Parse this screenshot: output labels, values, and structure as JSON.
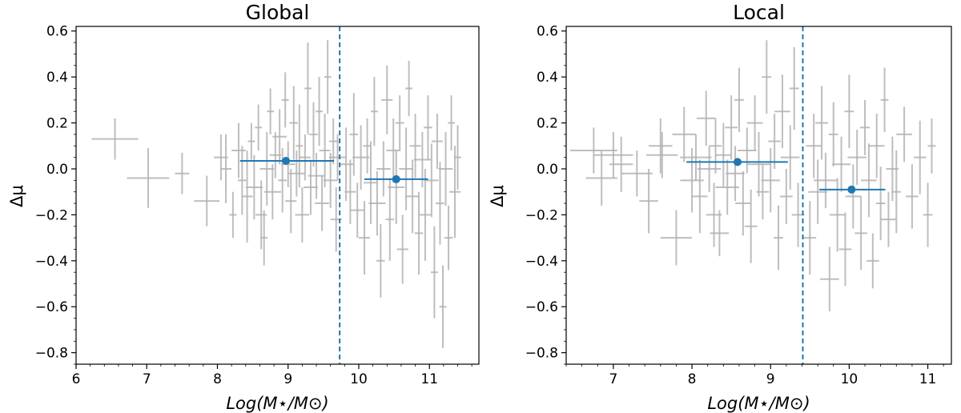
{
  "chart_data": [
    {
      "type": "scatter",
      "title": "Global",
      "xlabel": "Log(M⋆/M⊙)",
      "ylabel": "Δμ",
      "xlim": [
        6.0,
        11.7
      ],
      "ylim": [
        -0.85,
        0.62
      ],
      "xticks": [
        "6",
        "7",
        "8",
        "9",
        "10",
        "11"
      ],
      "yticks": [
        "−0.8",
        "−0.6",
        "−0.4",
        "−0.2",
        "0.0",
        "0.2",
        "0.4",
        "0.6"
      ],
      "grid": false,
      "legend": "none",
      "colors": {
        "data": "#b3b3b3",
        "summary": "#1f77b4",
        "divider": "#1f77b4"
      },
      "divider_x": 9.73,
      "summary_points": [
        {
          "x": 8.97,
          "y": 0.035,
          "xerr_low": 0.65,
          "xerr_high": 0.68
        },
        {
          "x": 10.53,
          "y": -0.045,
          "xerr_low": 0.45,
          "xerr_high": 0.45
        }
      ],
      "points": [
        {
          "x": 6.55,
          "y": 0.13,
          "xe": 0.33,
          "ye": 0.09
        },
        {
          "x": 7.02,
          "y": -0.04,
          "xe": 0.3,
          "ye": 0.13
        },
        {
          "x": 7.5,
          "y": -0.02,
          "xe": 0.1,
          "ye": 0.09
        },
        {
          "x": 7.85,
          "y": -0.14,
          "xe": 0.18,
          "ye": 0.11
        },
        {
          "x": 8.05,
          "y": 0.05,
          "xe": 0.1,
          "ye": 0.1
        },
        {
          "x": 8.12,
          "y": 0.0,
          "xe": 0.08,
          "ye": 0.15
        },
        {
          "x": 8.22,
          "y": -0.2,
          "xe": 0.05,
          "ye": 0.1
        },
        {
          "x": 8.3,
          "y": 0.08,
          "xe": 0.1,
          "ye": 0.12
        },
        {
          "x": 8.35,
          "y": -0.05,
          "xe": 0.06,
          "ye": 0.15
        },
        {
          "x": 8.42,
          "y": -0.12,
          "xe": 0.08,
          "ye": 0.2
        },
        {
          "x": 8.48,
          "y": 0.12,
          "xe": 0.05,
          "ye": 0.08
        },
        {
          "x": 8.52,
          "y": -0.08,
          "xe": 0.12,
          "ye": 0.14
        },
        {
          "x": 8.58,
          "y": 0.18,
          "xe": 0.05,
          "ye": 0.1
        },
        {
          "x": 8.62,
          "y": -0.2,
          "xe": 0.08,
          "ye": 0.15
        },
        {
          "x": 8.66,
          "y": -0.3,
          "xe": 0.05,
          "ye": 0.12
        },
        {
          "x": 8.7,
          "y": 0.0,
          "xe": 0.1,
          "ye": 0.16
        },
        {
          "x": 8.75,
          "y": 0.25,
          "xe": 0.05,
          "ye": 0.1
        },
        {
          "x": 8.78,
          "y": -0.1,
          "xe": 0.12,
          "ye": 0.12
        },
        {
          "x": 8.82,
          "y": 0.06,
          "xe": 0.08,
          "ye": 0.1
        },
        {
          "x": 8.88,
          "y": 0.14,
          "xe": 0.1,
          "ye": 0.12
        },
        {
          "x": 8.92,
          "y": -0.05,
          "xe": 0.06,
          "ye": 0.14
        },
        {
          "x": 8.96,
          "y": 0.3,
          "xe": 0.05,
          "ye": 0.12
        },
        {
          "x": 9.0,
          "y": 0.02,
          "xe": 0.1,
          "ye": 0.1
        },
        {
          "x": 9.04,
          "y": -0.14,
          "xe": 0.08,
          "ye": 0.14
        },
        {
          "x": 9.08,
          "y": 0.2,
          "xe": 0.06,
          "ye": 0.16
        },
        {
          "x": 9.12,
          "y": -0.02,
          "xe": 0.12,
          "ye": 0.1
        },
        {
          "x": 9.16,
          "y": 0.1,
          "xe": 0.05,
          "ye": 0.18
        },
        {
          "x": 9.2,
          "y": -0.2,
          "xe": 0.1,
          "ye": 0.12
        },
        {
          "x": 9.24,
          "y": 0.05,
          "xe": 0.08,
          "ye": 0.1
        },
        {
          "x": 9.28,
          "y": 0.35,
          "xe": 0.05,
          "ye": 0.2
        },
        {
          "x": 9.32,
          "y": -0.08,
          "xe": 0.1,
          "ye": 0.12
        },
        {
          "x": 9.36,
          "y": 0.15,
          "xe": 0.06,
          "ye": 0.14
        },
        {
          "x": 9.4,
          "y": -0.03,
          "xe": 0.12,
          "ye": 0.1
        },
        {
          "x": 9.44,
          "y": 0.25,
          "xe": 0.05,
          "ye": 0.15
        },
        {
          "x": 9.48,
          "y": -0.15,
          "xe": 0.1,
          "ye": 0.12
        },
        {
          "x": 9.52,
          "y": 0.08,
          "xe": 0.08,
          "ye": 0.16
        },
        {
          "x": 9.56,
          "y": 0.4,
          "xe": 0.05,
          "ye": 0.16
        },
        {
          "x": 9.6,
          "y": -0.05,
          "xe": 0.1,
          "ye": 0.12
        },
        {
          "x": 9.64,
          "y": 0.12,
          "xe": 0.06,
          "ye": 0.1
        },
        {
          "x": 9.68,
          "y": -0.22,
          "xe": 0.08,
          "ye": 0.14
        },
        {
          "x": 9.7,
          "y": 0.05,
          "xe": 0.12,
          "ye": 0.1
        },
        {
          "x": 9.82,
          "y": 0.02,
          "xe": 0.1,
          "ye": 0.16
        },
        {
          "x": 9.88,
          "y": -0.1,
          "xe": 0.08,
          "ye": 0.14
        },
        {
          "x": 9.93,
          "y": 0.15,
          "xe": 0.06,
          "ye": 0.18
        },
        {
          "x": 9.98,
          "y": -0.18,
          "xe": 0.1,
          "ye": 0.12
        },
        {
          "x": 10.03,
          "y": 0.05,
          "xe": 0.12,
          "ye": 0.14
        },
        {
          "x": 10.08,
          "y": -0.3,
          "xe": 0.08,
          "ye": 0.16
        },
        {
          "x": 10.12,
          "y": 0.1,
          "xe": 0.06,
          "ye": 0.12
        },
        {
          "x": 10.17,
          "y": -0.06,
          "xe": 0.1,
          "ye": 0.18
        },
        {
          "x": 10.22,
          "y": 0.25,
          "xe": 0.05,
          "ye": 0.15
        },
        {
          "x": 10.26,
          "y": -0.15,
          "xe": 0.12,
          "ye": 0.14
        },
        {
          "x": 10.31,
          "y": -0.4,
          "xe": 0.06,
          "ye": 0.16
        },
        {
          "x": 10.35,
          "y": 0.0,
          "xe": 0.1,
          "ye": 0.12
        },
        {
          "x": 10.4,
          "y": 0.3,
          "xe": 0.08,
          "ye": 0.15
        },
        {
          "x": 10.44,
          "y": -0.22,
          "xe": 0.06,
          "ye": 0.18
        },
        {
          "x": 10.49,
          "y": 0.08,
          "xe": 0.1,
          "ye": 0.14
        },
        {
          "x": 10.53,
          "y": -0.08,
          "xe": 0.12,
          "ye": 0.16
        },
        {
          "x": 10.58,
          "y": 0.2,
          "xe": 0.06,
          "ye": 0.12
        },
        {
          "x": 10.62,
          "y": -0.35,
          "xe": 0.08,
          "ye": 0.15
        },
        {
          "x": 10.67,
          "y": 0.0,
          "xe": 0.1,
          "ye": 0.18
        },
        {
          "x": 10.71,
          "y": 0.35,
          "xe": 0.05,
          "ye": 0.12
        },
        {
          "x": 10.76,
          "y": -0.12,
          "xe": 0.1,
          "ye": 0.16
        },
        {
          "x": 10.8,
          "y": 0.1,
          "xe": 0.08,
          "ye": 0.14
        },
        {
          "x": 10.85,
          "y": -0.28,
          "xe": 0.06,
          "ye": 0.18
        },
        {
          "x": 10.9,
          "y": 0.04,
          "xe": 0.12,
          "ye": 0.12
        },
        {
          "x": 10.94,
          "y": -0.2,
          "xe": 0.08,
          "ye": 0.2
        },
        {
          "x": 10.98,
          "y": 0.18,
          "xe": 0.06,
          "ye": 0.14
        },
        {
          "x": 11.03,
          "y": -0.05,
          "xe": 0.1,
          "ye": 0.16
        },
        {
          "x": 11.07,
          "y": -0.45,
          "xe": 0.05,
          "ye": 0.2
        },
        {
          "x": 11.11,
          "y": 0.12,
          "xe": 0.08,
          "ye": 0.12
        },
        {
          "x": 11.15,
          "y": -0.15,
          "xe": 0.06,
          "ye": 0.18
        },
        {
          "x": 11.19,
          "y": -0.6,
          "xe": 0.05,
          "ye": 0.18
        },
        {
          "x": 11.23,
          "y": 0.0,
          "xe": 0.1,
          "ye": 0.16
        },
        {
          "x": 11.27,
          "y": -0.3,
          "xe": 0.06,
          "ye": 0.14
        },
        {
          "x": 11.31,
          "y": 0.2,
          "xe": 0.05,
          "ye": 0.12
        },
        {
          "x": 11.36,
          "y": -0.1,
          "xe": 0.08,
          "ye": 0.2
        },
        {
          "x": 11.4,
          "y": 0.05,
          "xe": 0.05,
          "ye": 0.14
        }
      ]
    },
    {
      "type": "scatter",
      "title": "Local",
      "xlabel": "Log(M⋆/M⊙)",
      "ylabel": "Δμ",
      "xlim": [
        6.4,
        11.3
      ],
      "ylim": [
        -0.85,
        0.62
      ],
      "xticks": [
        "7",
        "8",
        "9",
        "10",
        "11"
      ],
      "yticks": [
        "−0.8",
        "−0.6",
        "−0.4",
        "−0.2",
        "0.0",
        "0.2",
        "0.4",
        "0.6"
      ],
      "grid": false,
      "legend": "none",
      "colors": {
        "data": "#b3b3b3",
        "summary": "#1f77b4",
        "divider": "#1f77b4"
      },
      "divider_x": 9.41,
      "summary_points": [
        {
          "x": 8.58,
          "y": 0.03,
          "xerr_low": 0.65,
          "xerr_high": 0.64
        },
        {
          "x": 10.03,
          "y": -0.09,
          "xerr_low": 0.41,
          "xerr_high": 0.43
        }
      ],
      "points": [
        {
          "x": 6.75,
          "y": 0.08,
          "xe": 0.3,
          "ye": 0.1
        },
        {
          "x": 6.85,
          "y": -0.04,
          "xe": 0.2,
          "ye": 0.12
        },
        {
          "x": 7.0,
          "y": 0.06,
          "xe": 0.25,
          "ye": 0.1
        },
        {
          "x": 7.1,
          "y": 0.02,
          "xe": 0.15,
          "ye": 0.12
        },
        {
          "x": 7.3,
          "y": -0.02,
          "xe": 0.2,
          "ye": 0.1
        },
        {
          "x": 7.45,
          "y": -0.14,
          "xe": 0.12,
          "ye": 0.14
        },
        {
          "x": 7.6,
          "y": 0.1,
          "xe": 0.15,
          "ye": 0.12
        },
        {
          "x": 7.62,
          "y": 0.06,
          "xe": 0.2,
          "ye": 0.1
        },
        {
          "x": 7.8,
          "y": -0.3,
          "xe": 0.2,
          "ye": 0.12
        },
        {
          "x": 7.9,
          "y": 0.15,
          "xe": 0.15,
          "ye": 0.12
        },
        {
          "x": 8.0,
          "y": -0.05,
          "xe": 0.15,
          "ye": 0.14
        },
        {
          "x": 8.05,
          "y": 0.05,
          "xe": 0.2,
          "ye": 0.1
        },
        {
          "x": 8.1,
          "y": -0.12,
          "xe": 0.1,
          "ye": 0.16
        },
        {
          "x": 8.18,
          "y": 0.22,
          "xe": 0.12,
          "ye": 0.12
        },
        {
          "x": 8.22,
          "y": 0.0,
          "xe": 0.15,
          "ye": 0.1
        },
        {
          "x": 8.28,
          "y": -0.2,
          "xe": 0.1,
          "ye": 0.14
        },
        {
          "x": 8.3,
          "y": 0.1,
          "xe": 0.08,
          "ye": 0.12
        },
        {
          "x": 8.35,
          "y": -0.28,
          "xe": 0.12,
          "ye": 0.1
        },
        {
          "x": 8.4,
          "y": 0.06,
          "xe": 0.1,
          "ye": 0.14
        },
        {
          "x": 8.45,
          "y": -0.08,
          "xe": 0.15,
          "ye": 0.12
        },
        {
          "x": 8.5,
          "y": 0.18,
          "xe": 0.08,
          "ye": 0.14
        },
        {
          "x": 8.55,
          "y": -0.02,
          "xe": 0.12,
          "ye": 0.12
        },
        {
          "x": 8.6,
          "y": 0.3,
          "xe": 0.06,
          "ye": 0.14
        },
        {
          "x": 8.65,
          "y": -0.15,
          "xe": 0.1,
          "ye": 0.14
        },
        {
          "x": 8.7,
          "y": 0.08,
          "xe": 0.12,
          "ye": 0.1
        },
        {
          "x": 8.75,
          "y": -0.25,
          "xe": 0.08,
          "ye": 0.16
        },
        {
          "x": 8.8,
          "y": 0.2,
          "xe": 0.1,
          "ye": 0.12
        },
        {
          "x": 8.85,
          "y": 0.02,
          "xe": 0.15,
          "ye": 0.14
        },
        {
          "x": 8.9,
          "y": -0.1,
          "xe": 0.08,
          "ye": 0.12
        },
        {
          "x": 8.95,
          "y": 0.4,
          "xe": 0.06,
          "ye": 0.16
        },
        {
          "x": 9.0,
          "y": -0.05,
          "xe": 0.12,
          "ye": 0.14
        },
        {
          "x": 9.05,
          "y": 0.12,
          "xe": 0.08,
          "ye": 0.12
        },
        {
          "x": 9.1,
          "y": -0.3,
          "xe": 0.06,
          "ye": 0.14
        },
        {
          "x": 9.15,
          "y": 0.25,
          "xe": 0.1,
          "ye": 0.16
        },
        {
          "x": 9.2,
          "y": -0.12,
          "xe": 0.08,
          "ye": 0.12
        },
        {
          "x": 9.25,
          "y": 0.05,
          "xe": 0.12,
          "ye": 0.14
        },
        {
          "x": 9.3,
          "y": 0.35,
          "xe": 0.06,
          "ye": 0.18
        },
        {
          "x": 9.35,
          "y": -0.2,
          "xe": 0.08,
          "ye": 0.14
        },
        {
          "x": 9.5,
          "y": -0.3,
          "xe": 0.08,
          "ye": 0.16
        },
        {
          "x": 9.55,
          "y": 0.1,
          "xe": 0.1,
          "ye": 0.14
        },
        {
          "x": 9.6,
          "y": -0.1,
          "xe": 0.12,
          "ye": 0.14
        },
        {
          "x": 9.65,
          "y": 0.2,
          "xe": 0.08,
          "ye": 0.16
        },
        {
          "x": 9.7,
          "y": -0.05,
          "xe": 0.15,
          "ye": 0.12
        },
        {
          "x": 9.75,
          "y": -0.48,
          "xe": 0.12,
          "ye": 0.14
        },
        {
          "x": 9.8,
          "y": 0.15,
          "xe": 0.06,
          "ye": 0.14
        },
        {
          "x": 9.85,
          "y": -0.2,
          "xe": 0.1,
          "ye": 0.16
        },
        {
          "x": 9.9,
          "y": 0.02,
          "xe": 0.12,
          "ye": 0.12
        },
        {
          "x": 9.95,
          "y": -0.35,
          "xe": 0.08,
          "ye": 0.16
        },
        {
          "x": 10.0,
          "y": 0.25,
          "xe": 0.06,
          "ye": 0.16
        },
        {
          "x": 10.05,
          "y": -0.12,
          "xe": 0.1,
          "ye": 0.14
        },
        {
          "x": 10.1,
          "y": 0.05,
          "xe": 0.12,
          "ye": 0.12
        },
        {
          "x": 10.15,
          "y": -0.28,
          "xe": 0.08,
          "ye": 0.16
        },
        {
          "x": 10.2,
          "y": 0.18,
          "xe": 0.06,
          "ye": 0.12
        },
        {
          "x": 10.25,
          "y": -0.05,
          "xe": 0.1,
          "ye": 0.16
        },
        {
          "x": 10.3,
          "y": -0.4,
          "xe": 0.08,
          "ye": 0.12
        },
        {
          "x": 10.35,
          "y": 0.1,
          "xe": 0.1,
          "ye": 0.14
        },
        {
          "x": 10.4,
          "y": -0.15,
          "xe": 0.06,
          "ye": 0.16
        },
        {
          "x": 10.45,
          "y": 0.3,
          "xe": 0.05,
          "ye": 0.14
        },
        {
          "x": 10.5,
          "y": -0.22,
          "xe": 0.1,
          "ye": 0.12
        },
        {
          "x": 10.55,
          "y": 0.0,
          "xe": 0.08,
          "ye": 0.14
        },
        {
          "x": 10.6,
          "y": -0.1,
          "xe": 0.06,
          "ye": 0.18
        },
        {
          "x": 10.7,
          "y": 0.15,
          "xe": 0.1,
          "ye": 0.12
        },
        {
          "x": 10.8,
          "y": -0.12,
          "xe": 0.08,
          "ye": 0.14
        },
        {
          "x": 10.9,
          "y": 0.05,
          "xe": 0.08,
          "ye": 0.16
        },
        {
          "x": 11.0,
          "y": -0.2,
          "xe": 0.06,
          "ye": 0.14
        },
        {
          "x": 11.05,
          "y": 0.1,
          "xe": 0.05,
          "ye": 0.12
        }
      ]
    }
  ]
}
